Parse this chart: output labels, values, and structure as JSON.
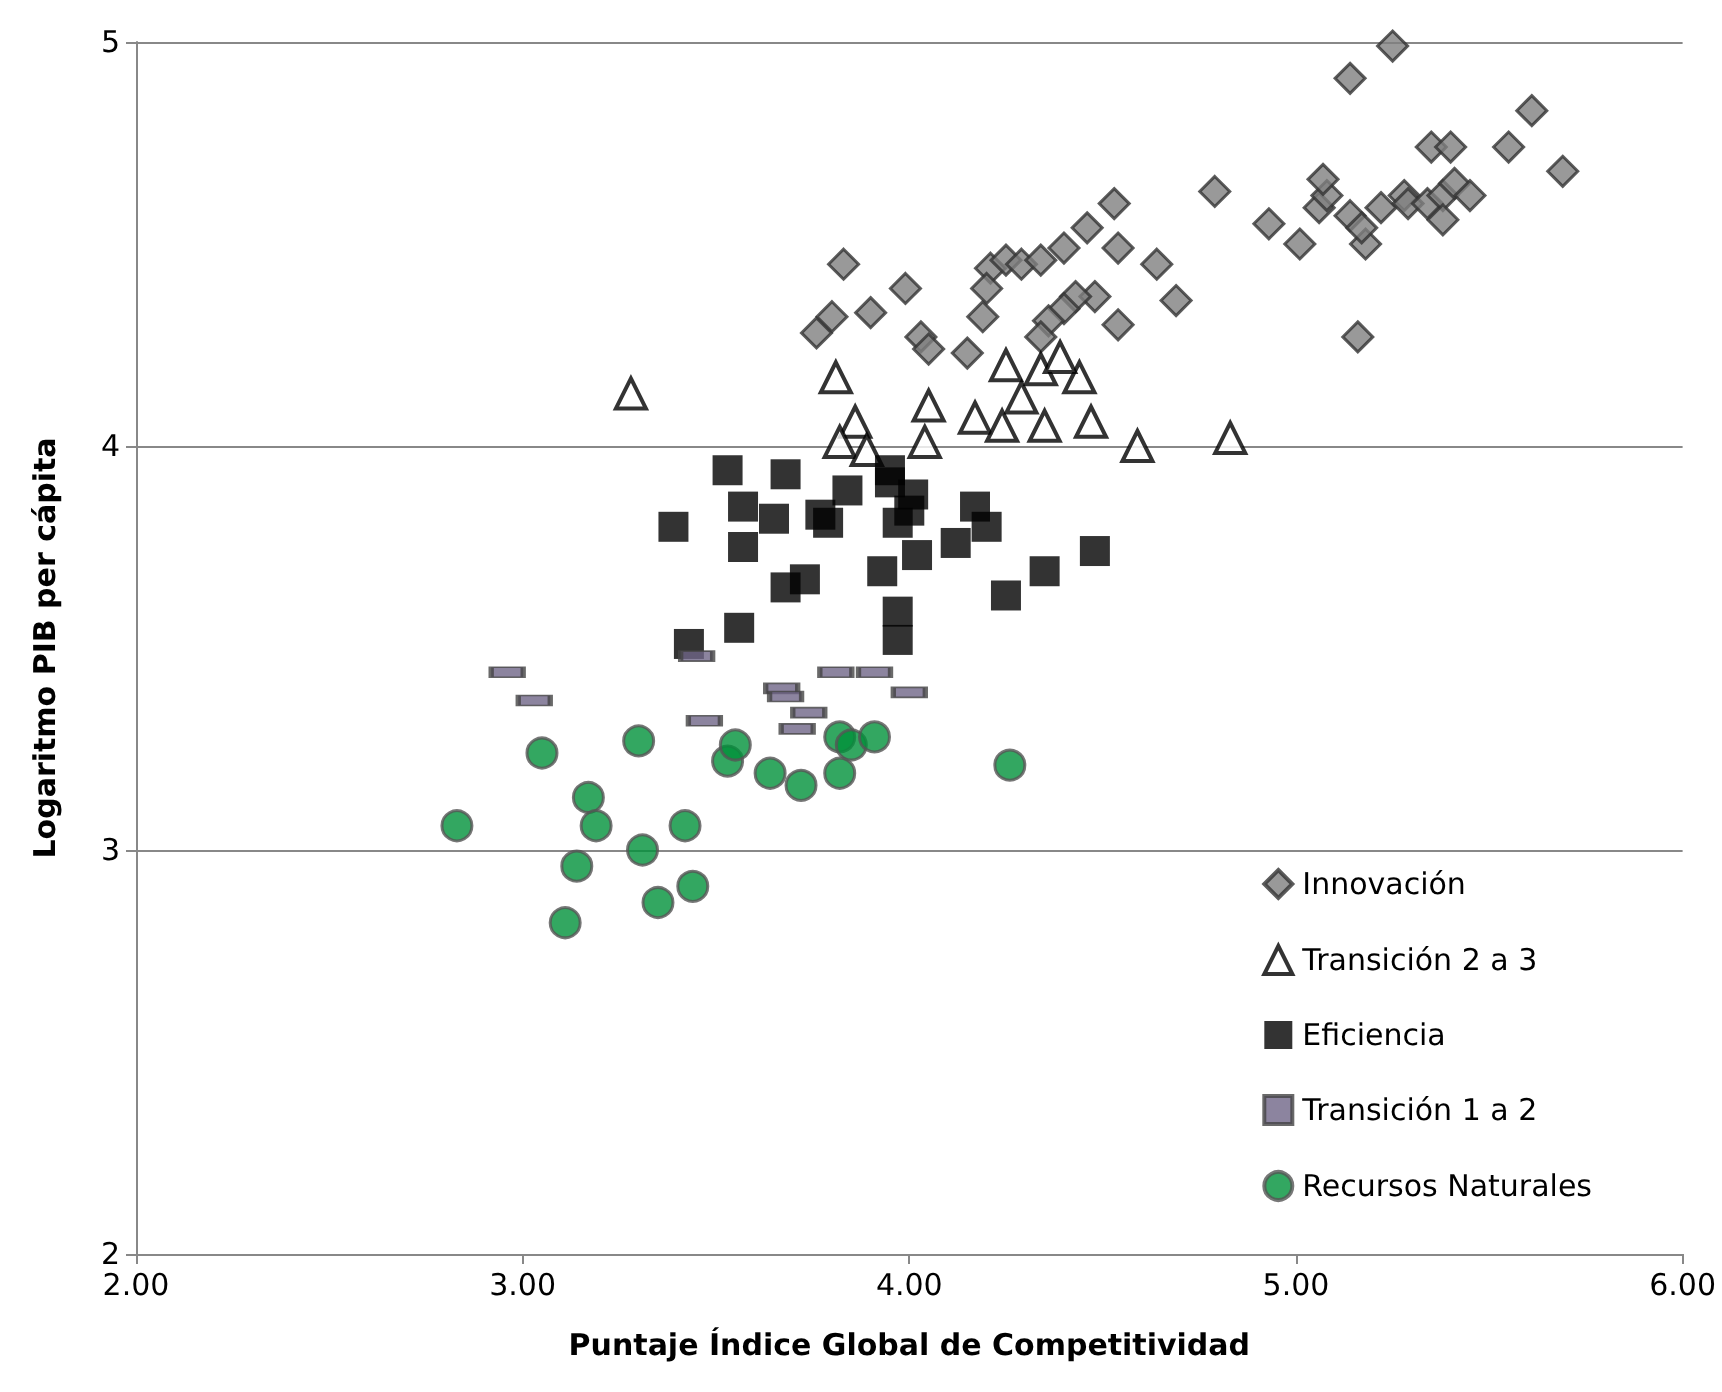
{
  "chart_data": {
    "type": "scatter",
    "xlabel": "Puntaje Índice Global de Competitividad",
    "ylabel": "Logaritmo PIB per cápita",
    "xlim": [
      2,
      6
    ],
    "xticks": [
      {
        "value": 2,
        "label": "2.00"
      },
      {
        "value": 3,
        "label": "3.00"
      },
      {
        "value": 4,
        "label": "4.00"
      },
      {
        "value": 5,
        "label": "5.00"
      },
      {
        "value": 6,
        "label": "6.00"
      }
    ],
    "ylim": [
      2,
      5
    ],
    "yticks": [
      2,
      3,
      4,
      5
    ],
    "grid": "y",
    "legend": "bottom right",
    "series": [
      {
        "name": "Innovación",
        "color": "#7f7f7f",
        "marker": "diamond",
        "x": [
          3.76,
          3.8,
          3.83,
          3.99,
          3.9,
          4.03,
          4.05,
          4.15,
          4.19,
          4.21,
          4.2,
          4.25,
          4.29,
          4.34,
          4.4,
          4.46,
          4.53,
          4.54,
          4.64,
          4.69,
          4.54,
          4.48,
          4.43,
          4.4,
          4.36,
          4.34,
          4.79,
          4.93,
          5.01,
          5.06,
          5.08,
          5.07,
          5.14,
          5.22,
          5.28,
          5.29,
          5.18,
          5.14,
          5.25,
          5.34,
          5.38,
          5.41,
          5.45,
          5.38,
          5.35,
          5.4,
          5.55,
          5.61,
          5.69,
          5.16,
          5.17
        ],
        "values": [
          4.28,
          4.32,
          4.45,
          4.39,
          4.33,
          4.27,
          4.24,
          4.23,
          4.32,
          4.44,
          4.39,
          4.46,
          4.45,
          4.46,
          4.49,
          4.54,
          4.6,
          4.49,
          4.45,
          4.36,
          4.3,
          4.37,
          4.37,
          4.34,
          4.31,
          4.27,
          4.63,
          4.55,
          4.5,
          4.59,
          4.62,
          4.66,
          4.57,
          4.59,
          4.62,
          4.6,
          4.5,
          4.91,
          4.99,
          4.6,
          4.62,
          4.65,
          4.62,
          4.56,
          4.74,
          4.74,
          4.74,
          4.83,
          4.68,
          4.27,
          4.54
        ]
      },
      {
        "name": "Transición 2 a 3",
        "color": "#000000",
        "marker": "triangle",
        "x": [
          3.28,
          3.81,
          3.86,
          3.82,
          3.89,
          4.05,
          4.04,
          4.17,
          4.24,
          4.29,
          4.25,
          4.34,
          4.44,
          4.39,
          4.35,
          4.47,
          4.59,
          4.83
        ],
        "values": [
          4.13,
          4.17,
          4.06,
          4.01,
          3.99,
          4.1,
          4.01,
          4.07,
          4.05,
          4.12,
          4.2,
          4.19,
          4.17,
          4.22,
          4.05,
          4.06,
          4.0,
          4.02
        ]
      },
      {
        "name": "Eficiencia",
        "color": "#000000",
        "marker": "square",
        "x": [
          3.39,
          3.53,
          3.57,
          3.57,
          3.65,
          3.68,
          3.43,
          3.56,
          3.68,
          3.73,
          3.77,
          3.79,
          3.84,
          3.93,
          3.95,
          4.01,
          3.95,
          4.0,
          3.97,
          4.02,
          3.97,
          3.97,
          4.12,
          4.17,
          4.2,
          4.25,
          4.35,
          4.48
        ],
        "values": [
          3.8,
          3.94,
          3.85,
          3.75,
          3.82,
          3.93,
          3.51,
          3.55,
          3.65,
          3.67,
          3.83,
          3.81,
          3.89,
          3.69,
          3.91,
          3.88,
          3.94,
          3.84,
          3.81,
          3.73,
          3.59,
          3.52,
          3.76,
          3.85,
          3.8,
          3.63,
          3.69,
          3.74
        ]
      },
      {
        "name": "Transición 1 a 2",
        "color": "#6f6587",
        "x": [
          2.96,
          3.03,
          3.45,
          3.47,
          3.67,
          3.68,
          3.74,
          3.71,
          3.81,
          3.91,
          4.0
        ],
        "values": [
          3.44,
          3.37,
          3.48,
          3.32,
          3.4,
          3.38,
          3.34,
          3.3,
          3.44,
          3.44,
          3.39
        ]
      },
      {
        "name": "Recursos Naturales",
        "color": "#00913a",
        "marker": "circle",
        "x": [
          3.05,
          3.3,
          3.17,
          3.19,
          3.14,
          3.11,
          3.31,
          3.42,
          3.35,
          3.44,
          3.53,
          3.55,
          3.64,
          3.72,
          3.82,
          3.85,
          3.91,
          3.82,
          4.26,
          2.83
        ],
        "values": [
          3.24,
          3.27,
          3.13,
          3.06,
          2.96,
          2.82,
          3.0,
          3.06,
          2.87,
          2.91,
          3.22,
          3.26,
          3.19,
          3.16,
          3.28,
          3.26,
          3.28,
          3.19,
          3.21,
          3.06
        ]
      }
    ]
  }
}
